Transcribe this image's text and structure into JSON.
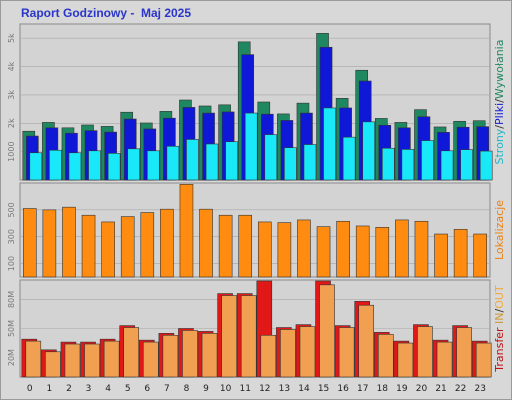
{
  "header": {
    "title": "Raport Godzinowy -  Maj 2025"
  },
  "chart_data": [
    {
      "type": "bar",
      "panel": "top",
      "categories": [
        "0",
        "1",
        "2",
        "3",
        "4",
        "5",
        "6",
        "7",
        "8",
        "9",
        "10",
        "11",
        "12",
        "13",
        "14",
        "15",
        "16",
        "17",
        "18",
        "19",
        "20",
        "21",
        "22",
        "23"
      ],
      "ylim": [
        0,
        5500
      ],
      "yticks": [
        "1000",
        "2k",
        "3k",
        "4k",
        "5k"
      ],
      "side_label": {
        "parts": [
          "Strony",
          "/",
          "Pliki",
          "/",
          "Wywołania"
        ],
        "colors": [
          "#18b8c8",
          "#333333",
          "#1018d8",
          "#333333",
          "#208860"
        ]
      },
      "series": [
        {
          "name": "Wywołania",
          "color": "#208860",
          "values": [
            1720,
            2030,
            1840,
            1940,
            1890,
            2390,
            2010,
            2420,
            2820,
            2610,
            2650,
            4870,
            2750,
            2330,
            2710,
            5170,
            2880,
            3870,
            2170,
            2030,
            2480,
            1870,
            2070,
            2090
          ]
        },
        {
          "name": "Pliki",
          "color": "#1018d8",
          "values": [
            1550,
            1840,
            1650,
            1740,
            1690,
            2150,
            1800,
            2180,
            2560,
            2360,
            2400,
            4420,
            2320,
            2100,
            2360,
            4680,
            2540,
            3490,
            1930,
            1840,
            2230,
            1680,
            1860,
            1880
          ]
        },
        {
          "name": "Strony",
          "color": "#18e8f8",
          "values": [
            960,
            1050,
            960,
            1030,
            940,
            1100,
            1030,
            1190,
            1430,
            1270,
            1350,
            2360,
            1600,
            1140,
            1250,
            2540,
            1510,
            2050,
            1120,
            1080,
            1390,
            1030,
            1070,
            1020
          ]
        }
      ]
    },
    {
      "type": "bar",
      "panel": "middle",
      "categories": [
        "0",
        "1",
        "2",
        "3",
        "4",
        "5",
        "6",
        "7",
        "8",
        "9",
        "10",
        "11",
        "12",
        "13",
        "14",
        "15",
        "16",
        "17",
        "18",
        "19",
        "20",
        "21",
        "22",
        "23"
      ],
      "ylim": [
        0,
        700
      ],
      "yticks": [
        "100",
        "300",
        "500"
      ],
      "side_label": {
        "parts": [
          "Lokalizacje"
        ],
        "colors": [
          "#ee8010"
        ]
      },
      "series": [
        {
          "name": "Lokalizacje",
          "color": "#ff8c10",
          "values": [
            510,
            500,
            520,
            460,
            410,
            450,
            480,
            505,
            690,
            505,
            460,
            460,
            410,
            405,
            425,
            375,
            415,
            380,
            370,
            425,
            415,
            320,
            355,
            320
          ]
        }
      ]
    },
    {
      "type": "bar",
      "panel": "bottom",
      "categories": [
        "0",
        "1",
        "2",
        "3",
        "4",
        "5",
        "6",
        "7",
        "8",
        "9",
        "10",
        "11",
        "12",
        "13",
        "14",
        "15",
        "16",
        "17",
        "18",
        "19",
        "20",
        "21",
        "22",
        "23"
      ],
      "ylim": [
        0,
        100
      ],
      "yticks": [
        "20M",
        "50M",
        "80M"
      ],
      "side_label": {
        "parts": [
          "Transfer",
          " ",
          "IN",
          "/",
          "OUT"
        ],
        "colors": [
          "#c01010",
          "#333333",
          "#d09838",
          "#333333",
          "#f0a840"
        ]
      },
      "series": [
        {
          "name": "IN",
          "color": "#e01818",
          "values": [
            39,
            28,
            36,
            36,
            39,
            53,
            38,
            45,
            50,
            47,
            86,
            86,
            99,
            51,
            54,
            99,
            53,
            78,
            46,
            37,
            54,
            38,
            53,
            37
          ]
        },
        {
          "name": "OUT",
          "color": "#f0a050",
          "values": [
            37,
            26,
            34,
            34,
            37,
            51,
            36,
            43,
            48,
            45,
            84,
            84,
            43,
            49,
            52,
            95,
            51,
            74,
            44,
            35,
            52,
            36,
            51,
            35
          ]
        }
      ]
    }
  ]
}
